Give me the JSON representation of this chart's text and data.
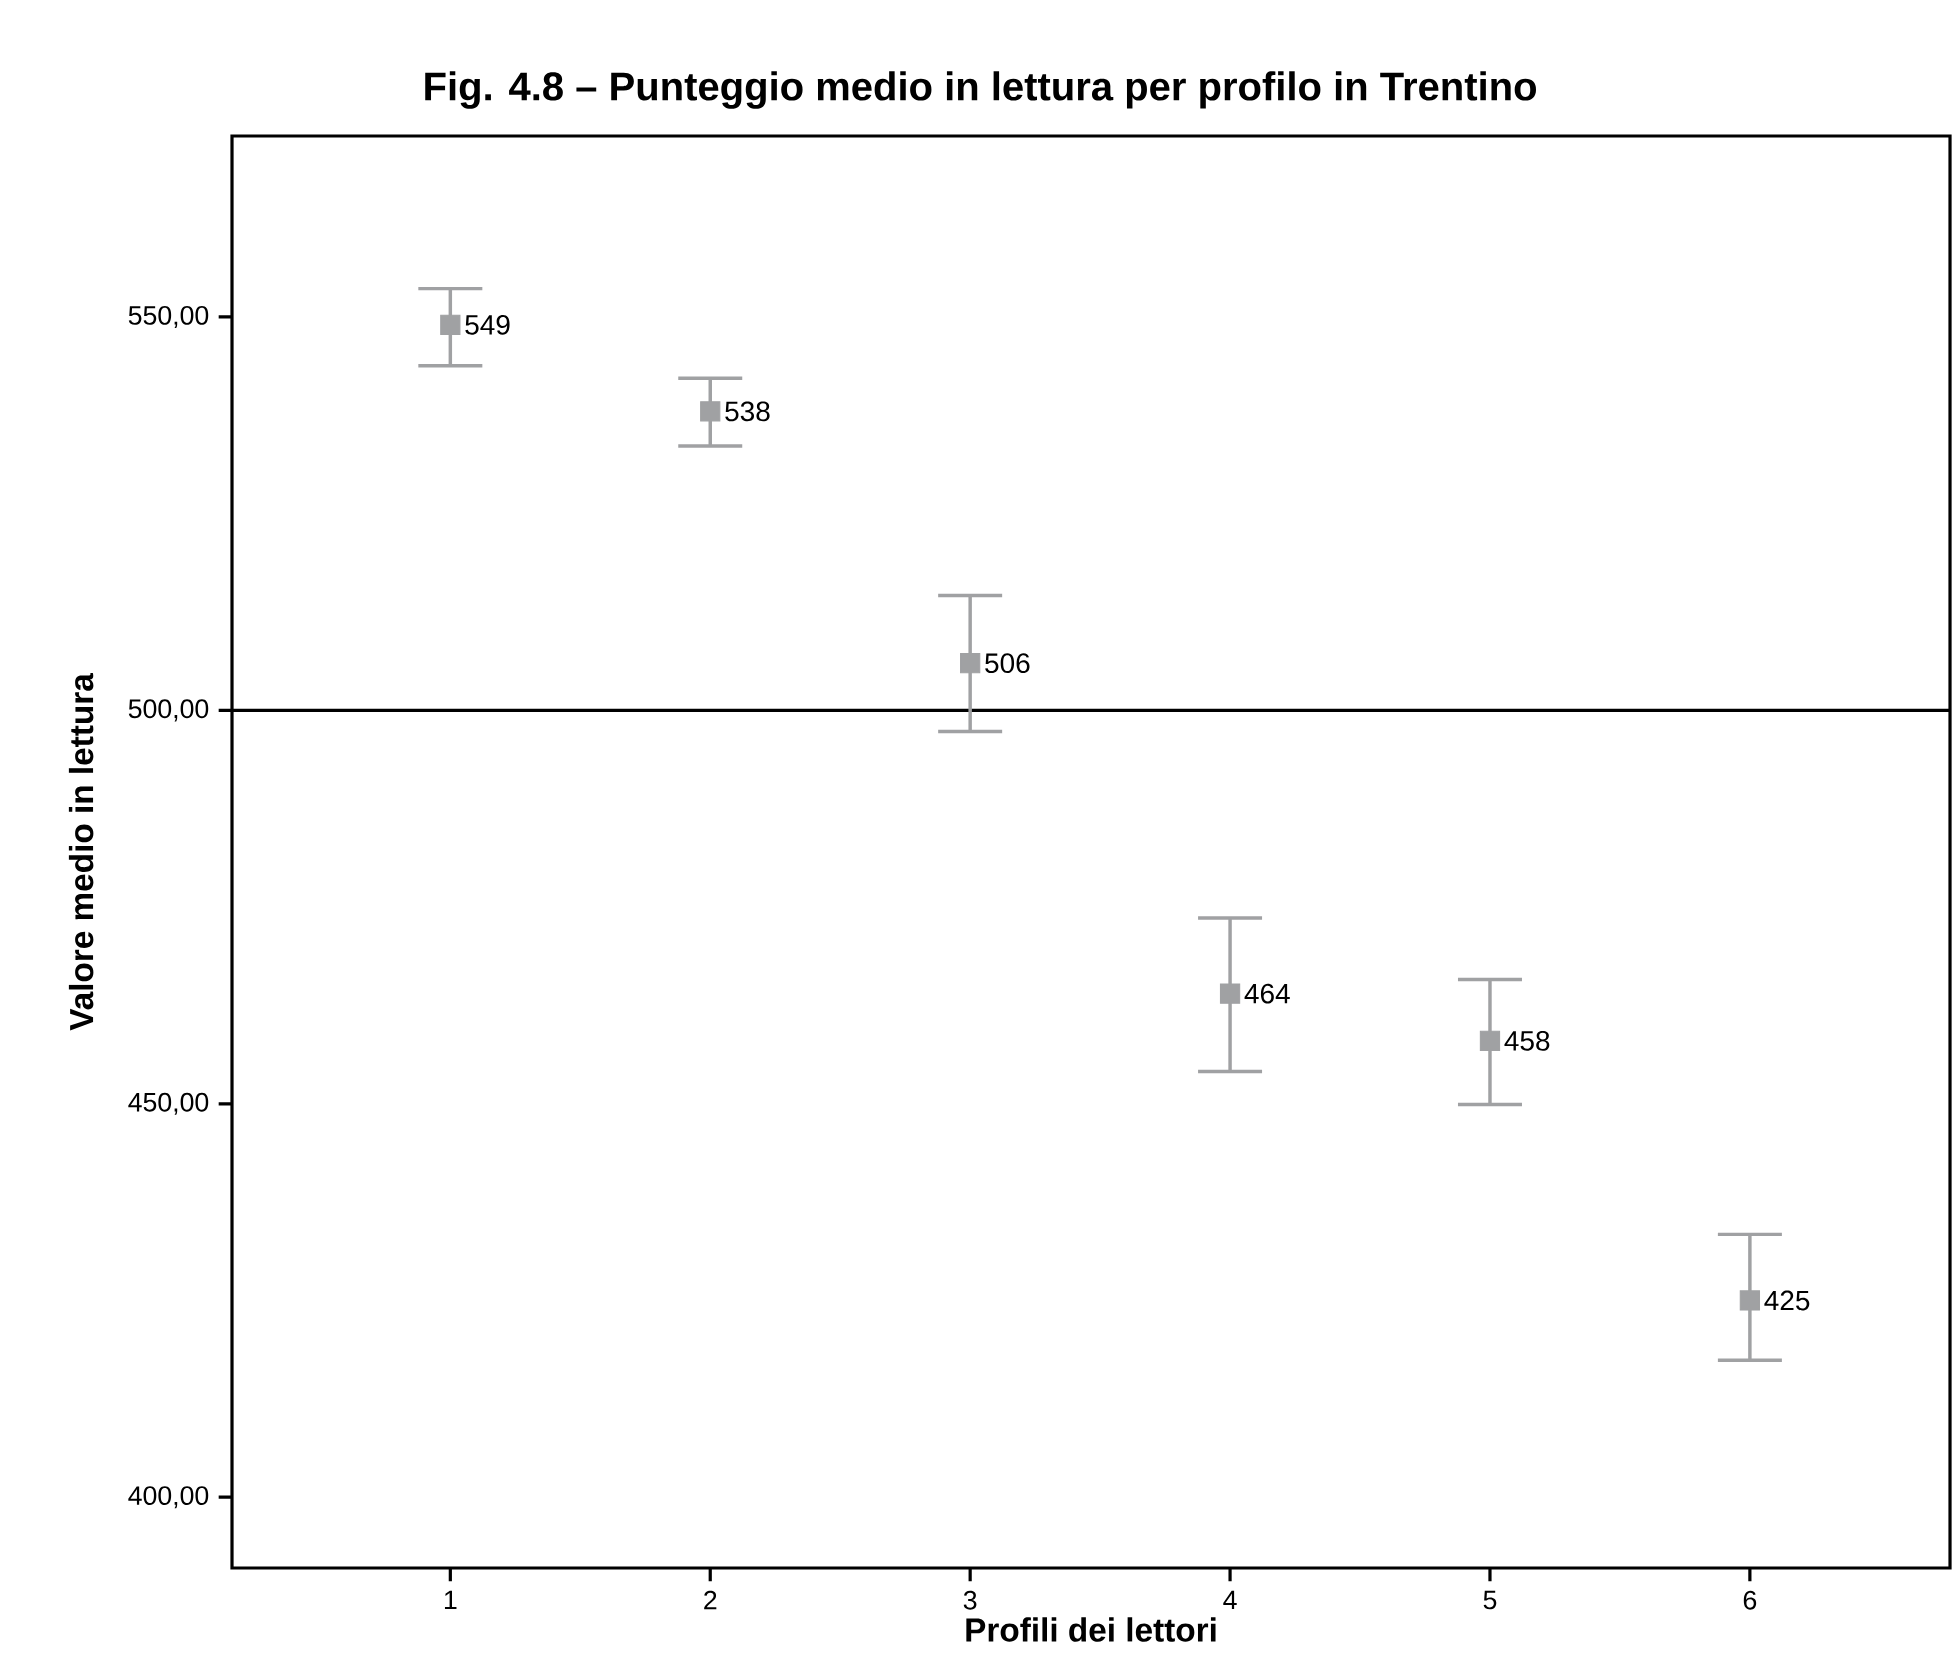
{
  "chart_data": {
    "type": "scatter",
    "title": "Fig. 4.8 – Punteggio medio in lettura per profilo in Trentino",
    "xlabel": "Profili dei lettori",
    "ylabel": "Valore medio in lettura",
    "x": [
      1,
      2,
      3,
      4,
      5,
      6
    ],
    "values": [
      549,
      538,
      506,
      464,
      458,
      425
    ],
    "errors": [
      [
        543.8,
        553.6
      ],
      [
        533.6,
        542.2
      ],
      [
        497.3,
        514.6
      ],
      [
        454.1,
        473.6
      ],
      [
        449.9,
        465.8
      ],
      [
        417.4,
        433.4
      ]
    ],
    "color": "#a0a1a3",
    "marker": "square",
    "data_labels": true,
    "xlim": [
      0.16,
      6.77
    ],
    "xticks": [
      1,
      2,
      3,
      4,
      5,
      6
    ],
    "ylim": [
      391,
      573
    ],
    "yticks": [
      {
        "value": 400,
        "label": "400,00"
      },
      {
        "value": 450,
        "label": "450,00"
      },
      {
        "value": 500,
        "label": "500,00"
      },
      {
        "value": 550,
        "label": "550,00"
      }
    ],
    "ref_lines": [
      {
        "axis": "y",
        "value": 500,
        "color": "#000000"
      }
    ]
  }
}
